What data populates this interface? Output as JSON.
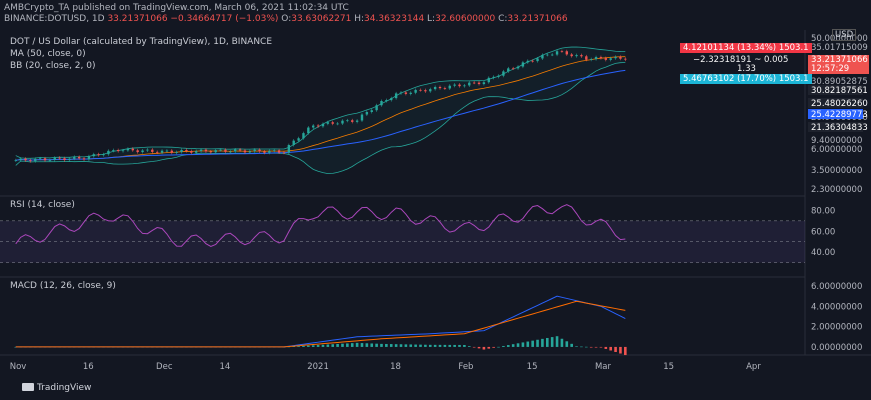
{
  "header": {
    "line1": "AMBCrypto_TA published on TradingView.com, March 06, 2021 11:02:34 UTC",
    "symbol": "BINANCE:DOTUSD, 1D",
    "change": "33.21371066 −0.34664717 (−1.03%)",
    "o_label": "O:",
    "o": "33.63062271",
    "h_label": "H:",
    "h": "34.36323144",
    "l_label": "L:",
    "l": "32.60600000",
    "c_label": "C:",
    "c": "33.21371066"
  },
  "legend": {
    "title": "DOT / US Dollar (calculated by TradingView), 1D, BINANCE",
    "ma": "MA (50, close, 0)",
    "bb": "BB (20, close, 2, 0)",
    "rsi": "RSI (14, close)",
    "macd": "MACD (12, 26, close, 9)"
  },
  "price_axis": {
    "unit": "USD",
    "ticks": [
      "50.00000000",
      "35.01715009",
      "30.89052875",
      "20.00000000",
      "9.40000000",
      "6.00000000",
      "3.50000000",
      "2.30000000"
    ],
    "labels": [
      {
        "text": "30.82187561",
        "color": "#1e222d"
      },
      {
        "text": "25.48026260",
        "color": "#1e222d"
      },
      {
        "text": "25.42289773",
        "color": "#2962ff"
      },
      {
        "text": "21.36304833",
        "color": "#1e222d"
      }
    ]
  },
  "badges": {
    "top": "4.12101134 (13.34%) 1503.1",
    "bottom": "5.46763102 (17.70%) 1503.1",
    "measure": "−2.32318191 ~ 0.005",
    "measure2": "1.33",
    "price": "33.21371066",
    "countdown": "12:57:29"
  },
  "rsi_axis": [
    "80.00",
    "60.00",
    "40.00"
  ],
  "macd_axis": [
    "6.00000000",
    "4.00000000",
    "2.00000000",
    "0.00000000"
  ],
  "x_axis": [
    "Nov",
    "16",
    "Dec",
    "14",
    "2021",
    "18",
    "Feb",
    "15",
    "Mar",
    "15",
    "Apr"
  ],
  "footer": {
    "brand": "TradingView"
  },
  "colors": {
    "up": "#26a69a",
    "down": "#ef5350",
    "ma": "#2962ff",
    "bb_basis": "#f57c00",
    "bb_band": "#26a69a",
    "rsi": "#ab47bc",
    "macd": "#2962ff",
    "signal": "#ff6d00"
  },
  "chart_data": {
    "type": "line",
    "title": "DOT / US Dollar (calculated by TradingView), 1D, BINANCE",
    "x_range": [
      "2020-10-30",
      "2021-04-10"
    ],
    "price_close_approx": [
      [
        "2020-11-01",
        4.2
      ],
      [
        "2020-11-15",
        4.4
      ],
      [
        "2020-11-22",
        5.2
      ],
      [
        "2020-12-01",
        5.0
      ],
      [
        "2020-12-15",
        5.1
      ],
      [
        "2020-12-26",
        5.0
      ],
      [
        "2021-01-01",
        8.5
      ],
      [
        "2021-01-10",
        9.5
      ],
      [
        "2021-01-18",
        16.0
      ],
      [
        "2021-01-28",
        18.5
      ],
      [
        "2021-02-05",
        20.5
      ],
      [
        "2021-02-14",
        31.0
      ],
      [
        "2021-02-20",
        38.0
      ],
      [
        "2021-02-26",
        33.0
      ],
      [
        "2021-03-06",
        33.2
      ]
    ],
    "rsi_approx": [
      [
        "2020-11-01",
        48
      ],
      [
        "2020-11-20",
        76
      ],
      [
        "2020-12-05",
        50
      ],
      [
        "2020-12-26",
        55
      ],
      [
        "2021-01-01",
        78
      ],
      [
        "2021-01-18",
        77
      ],
      [
        "2021-02-01",
        62
      ],
      [
        "2021-02-20",
        84
      ],
      [
        "2021-03-01",
        66
      ],
      [
        "2021-03-06",
        56
      ]
    ],
    "macd_approx": [
      [
        "2020-11-01",
        0.0
      ],
      [
        "2020-12-26",
        0.0
      ],
      [
        "2021-01-10",
        1.0
      ],
      [
        "2021-01-25",
        1.3
      ],
      [
        "2021-02-05",
        1.6
      ],
      [
        "2021-02-20",
        5.0
      ],
      [
        "2021-03-01",
        4.0
      ],
      [
        "2021-03-06",
        2.8
      ]
    ],
    "signal_approx": [
      [
        "2020-11-01",
        0.0
      ],
      [
        "2020-12-26",
        0.0
      ],
      [
        "2021-01-15",
        0.8
      ],
      [
        "2021-02-01",
        1.3
      ],
      [
        "2021-02-24",
        4.5
      ],
      [
        "2021-03-06",
        3.6
      ]
    ],
    "rsi_levels": [
      70,
      50,
      30
    ],
    "macd_range": [
      -0.5,
      6.3
    ]
  }
}
